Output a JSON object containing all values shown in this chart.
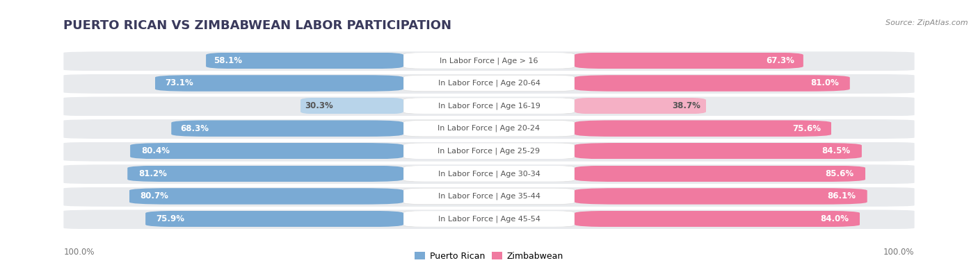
{
  "title": "PUERTO RICAN VS ZIMBABWEAN LABOR PARTICIPATION",
  "source": "Source: ZipAtlas.com",
  "categories": [
    "In Labor Force | Age > 16",
    "In Labor Force | Age 20-64",
    "In Labor Force | Age 16-19",
    "In Labor Force | Age 20-24",
    "In Labor Force | Age 25-29",
    "In Labor Force | Age 30-34",
    "In Labor Force | Age 35-44",
    "In Labor Force | Age 45-54"
  ],
  "puerto_rican": [
    58.1,
    73.1,
    30.3,
    68.3,
    80.4,
    81.2,
    80.7,
    75.9
  ],
  "zimbabwean": [
    67.3,
    81.0,
    38.7,
    75.6,
    84.5,
    85.6,
    86.1,
    84.0
  ],
  "blue_strong": "#7aaad4",
  "pink_strong": "#f07aa0",
  "blue_light": "#b8d4ea",
  "pink_light": "#f5b0c5",
  "row_bg_color": "#e8eaed",
  "center_label_bg": "#ffffff",
  "bg_color": "#ffffff",
  "text_white": "#ffffff",
  "text_dark": "#555555",
  "text_outside_dark": "#555555",
  "title_color": "#3a3a5c",
  "source_color": "#888888",
  "axis_label_color": "#777777",
  "max_val": 100.0,
  "legend_blue": "Puerto Rican",
  "legend_pink": "Zimbabwean",
  "title_fontsize": 13,
  "bar_fontsize": 8.5,
  "cat_fontsize": 8,
  "legend_fontsize": 9,
  "source_fontsize": 8
}
